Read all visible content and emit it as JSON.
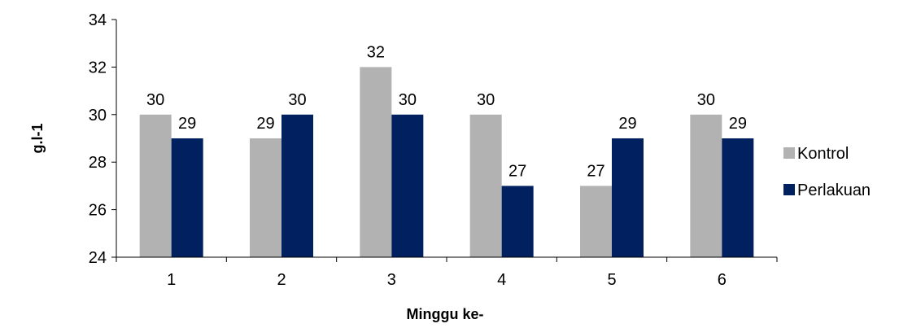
{
  "chart_data": {
    "type": "bar",
    "title": "",
    "xlabel": "Minggu ke-",
    "ylabel": "g.l-1",
    "categories": [
      "1",
      "2",
      "3",
      "4",
      "5",
      "6"
    ],
    "ylim": [
      24,
      34
    ],
    "yticks": [
      "24",
      "26",
      "28",
      "30",
      "32",
      "34"
    ],
    "grid": false,
    "legend_position": "right",
    "series": [
      {
        "name": "Kontrol",
        "color": "#b2b2b2",
        "values": [
          30,
          29,
          32,
          30,
          27,
          30
        ],
        "labels": [
          "30",
          "29",
          "32",
          "30",
          "27",
          "30"
        ]
      },
      {
        "name": "Perlakuan",
        "color": "#002060",
        "values": [
          29,
          30,
          30,
          27,
          29,
          29
        ],
        "labels": [
          "29",
          "30",
          "30",
          "27",
          "29",
          "29"
        ]
      }
    ]
  }
}
